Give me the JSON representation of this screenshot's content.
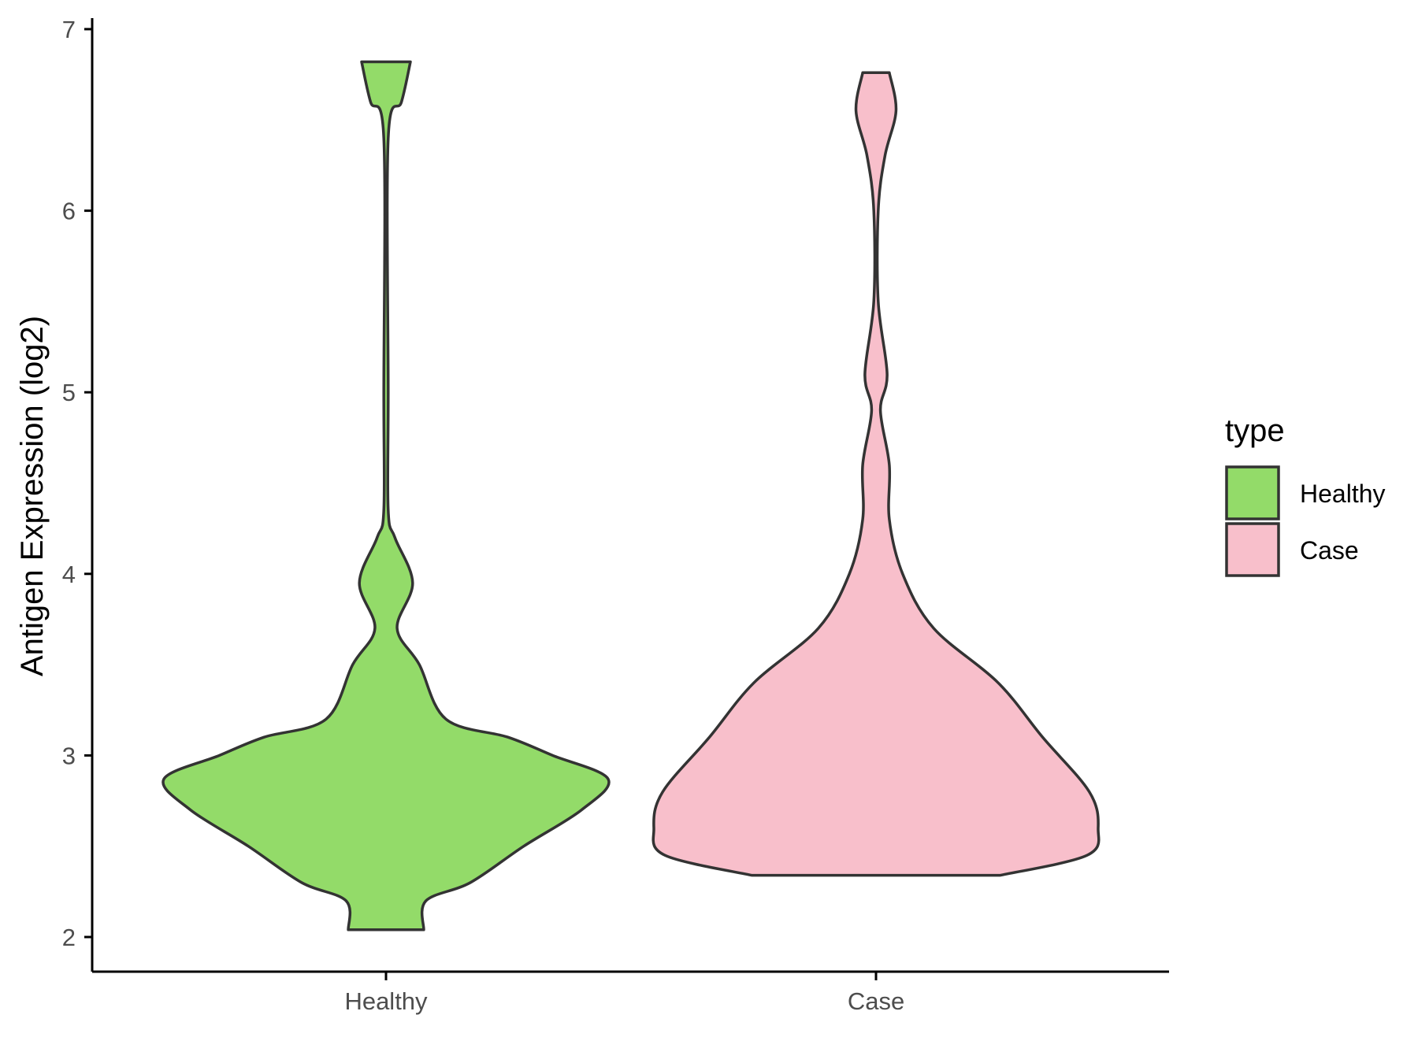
{
  "chart_data": {
    "type": "violin",
    "title": "",
    "xlabel": "",
    "ylabel": "Antigen Expression (log2)",
    "ylim": [
      2,
      7
    ],
    "yticks": [
      2,
      3,
      4,
      5,
      6,
      7
    ],
    "categories": [
      "Healthy",
      "Case"
    ],
    "grid": false,
    "legend": {
      "title": "type",
      "position": "right",
      "items": [
        {
          "label": "Healthy",
          "color": "#93DB69"
        },
        {
          "label": "Case",
          "color": "#F8BFCB"
        }
      ]
    },
    "series": [
      {
        "category": "Healthy",
        "color": "#93DB69",
        "min": 2.04,
        "max": 6.82,
        "density_profile": [
          [
            2.04,
            0.17
          ],
          [
            2.2,
            0.18
          ],
          [
            2.3,
            0.38
          ],
          [
            2.5,
            0.62
          ],
          [
            2.7,
            0.88
          ],
          [
            2.87,
            1.0
          ],
          [
            3.0,
            0.75
          ],
          [
            3.1,
            0.55
          ],
          [
            3.2,
            0.27
          ],
          [
            3.5,
            0.15
          ],
          [
            3.7,
            0.05
          ],
          [
            3.95,
            0.12
          ],
          [
            4.2,
            0.04
          ],
          [
            4.35,
            0.01
          ],
          [
            5.0,
            0.01
          ],
          [
            6.4,
            0.01
          ],
          [
            6.6,
            0.07
          ],
          [
            6.82,
            0.11
          ]
        ]
      },
      {
        "category": "Case",
        "color": "#F8BFCB",
        "min": 2.34,
        "max": 6.76,
        "density_profile": [
          [
            2.34,
            0.56
          ],
          [
            2.45,
            0.95
          ],
          [
            2.6,
            1.0
          ],
          [
            2.8,
            0.96
          ],
          [
            3.1,
            0.75
          ],
          [
            3.4,
            0.55
          ],
          [
            3.7,
            0.26
          ],
          [
            4.0,
            0.12
          ],
          [
            4.3,
            0.06
          ],
          [
            4.6,
            0.06
          ],
          [
            4.9,
            0.02
          ],
          [
            5.1,
            0.05
          ],
          [
            5.5,
            0.01
          ],
          [
            6.0,
            0.01
          ],
          [
            6.3,
            0.04
          ],
          [
            6.55,
            0.09
          ],
          [
            6.76,
            0.06
          ]
        ]
      }
    ]
  }
}
